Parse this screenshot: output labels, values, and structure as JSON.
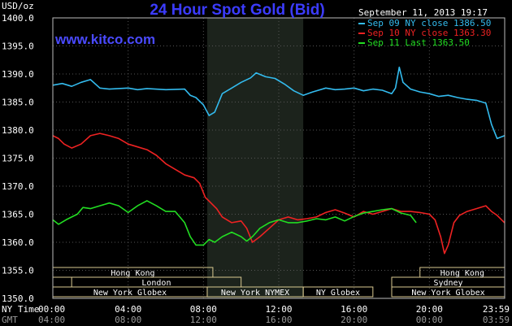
{
  "title": "24 Hour Spot Gold (Bid)",
  "brand": "www.kitco.com",
  "ylabel_unit": "USD/oz",
  "timestamp": "September 11, 2013 19:17",
  "legend": [
    {
      "label": "Sep 09 NY close 1386.50",
      "color": "#33bbee"
    },
    {
      "label": "Sep 10 NY close 1363.30",
      "color": "#ee2222"
    },
    {
      "label": "Sep 11 Last 1363.50",
      "color": "#22dd22"
    }
  ],
  "row_labels": {
    "ny_time": "NY Time",
    "gmt": "GMT"
  },
  "markets": [
    {
      "label": "Hong Kong",
      "start": 0.0,
      "end": 8.5
    },
    {
      "label": "London",
      "start": 1.0,
      "end": 10.0
    },
    {
      "label": "New York Globex",
      "start": 0.0,
      "end": 8.2
    },
    {
      "label": "New York NYMEX",
      "start": 8.2,
      "end": 13.3
    },
    {
      "label": "NY Globex",
      "start": 13.3,
      "end": 17.0
    },
    {
      "label": "Sydney",
      "start": 18.0,
      "end": 24.0
    },
    {
      "label": "Hong Kong",
      "start": 19.5,
      "end": 24.0
    },
    {
      "label": "New York Globex",
      "start": 18.0,
      "end": 24.0
    }
  ],
  "chart_data": {
    "type": "line",
    "title": "24 Hour Spot Gold (Bid)",
    "ylabel": "USD/oz",
    "xlim": [
      0,
      24
    ],
    "ylim": [
      1350,
      1400
    ],
    "yticks": [
      1350,
      1355,
      1360,
      1365,
      1370,
      1375,
      1380,
      1385,
      1390,
      1395,
      1400
    ],
    "xticks": [
      {
        "ny": "00:00",
        "gmt": "04:00"
      },
      {
        "ny": "04:00",
        "gmt": "08:00"
      },
      {
        "ny": "08:00",
        "gmt": "12:00"
      },
      {
        "ny": "12:00",
        "gmt": "16:00"
      },
      {
        "ny": "16:00",
        "gmt": "20:00"
      },
      {
        "ny": "20:00",
        "gmt": "00:00"
      },
      {
        "ny": "23:59",
        "gmt": "03:59"
      }
    ],
    "shaded_region": [
      8.2,
      13.3
    ],
    "grid": true,
    "series": [
      {
        "name": "Sep 09 NY close 1386.50",
        "color": "#33bbee",
        "points": [
          [
            0,
            1388
          ],
          [
            0.5,
            1388.3
          ],
          [
            1,
            1387.8
          ],
          [
            1.5,
            1388.5
          ],
          [
            2,
            1389
          ],
          [
            2.5,
            1387.5
          ],
          [
            3,
            1387.3
          ],
          [
            4,
            1387.5
          ],
          [
            4.5,
            1387.2
          ],
          [
            5,
            1387.4
          ],
          [
            6,
            1387.2
          ],
          [
            7,
            1387.3
          ],
          [
            7.3,
            1386.2
          ],
          [
            7.6,
            1385.8
          ],
          [
            8,
            1384.5
          ],
          [
            8.3,
            1382.6
          ],
          [
            8.6,
            1383.2
          ],
          [
            9,
            1386.5
          ],
          [
            9.5,
            1387.5
          ],
          [
            10,
            1388.5
          ],
          [
            10.5,
            1389.3
          ],
          [
            10.8,
            1390.2
          ],
          [
            11.3,
            1389.5
          ],
          [
            11.8,
            1389.2
          ],
          [
            12.3,
            1388.2
          ],
          [
            12.8,
            1387
          ],
          [
            13.3,
            1386.2
          ],
          [
            13.8,
            1386.8
          ],
          [
            14.5,
            1387.5
          ],
          [
            15,
            1387.2
          ],
          [
            15.5,
            1387.3
          ],
          [
            16,
            1387.5
          ],
          [
            16.5,
            1387
          ],
          [
            17,
            1387.3
          ],
          [
            17.5,
            1387.1
          ],
          [
            18,
            1386.5
          ],
          [
            18.2,
            1387.5
          ],
          [
            18.4,
            1391.2
          ],
          [
            18.6,
            1388.5
          ],
          [
            19,
            1387.3
          ],
          [
            19.5,
            1386.8
          ],
          [
            20,
            1386.5
          ],
          [
            20.5,
            1386
          ],
          [
            21,
            1386.2
          ],
          [
            21.5,
            1385.8
          ],
          [
            22,
            1385.5
          ],
          [
            22.5,
            1385.3
          ],
          [
            23,
            1384.8
          ],
          [
            23.3,
            1381
          ],
          [
            23.6,
            1378.5
          ],
          [
            23.99,
            1379
          ]
        ]
      },
      {
        "name": "Sep 10 NY close 1363.30",
        "color": "#ee2222",
        "points": [
          [
            0,
            1379
          ],
          [
            0.3,
            1378.5
          ],
          [
            0.6,
            1377.5
          ],
          [
            1,
            1376.8
          ],
          [
            1.5,
            1377.5
          ],
          [
            2,
            1379
          ],
          [
            2.5,
            1379.4
          ],
          [
            3,
            1379
          ],
          [
            3.5,
            1378.5
          ],
          [
            4,
            1377.5
          ],
          [
            4.5,
            1377
          ],
          [
            5,
            1376.5
          ],
          [
            5.5,
            1375.5
          ],
          [
            6,
            1374
          ],
          [
            6.5,
            1373
          ],
          [
            7,
            1372
          ],
          [
            7.5,
            1371.5
          ],
          [
            7.8,
            1370.5
          ],
          [
            8.1,
            1368
          ],
          [
            8.4,
            1367
          ],
          [
            8.7,
            1366
          ],
          [
            9,
            1364.5
          ],
          [
            9.5,
            1363.5
          ],
          [
            10,
            1363.8
          ],
          [
            10.3,
            1362.5
          ],
          [
            10.6,
            1360
          ],
          [
            11,
            1361
          ],
          [
            11.5,
            1362.5
          ],
          [
            12,
            1364
          ],
          [
            12.5,
            1364.5
          ],
          [
            13,
            1364
          ],
          [
            13.5,
            1364.2
          ],
          [
            14,
            1364.5
          ],
          [
            14.5,
            1365.3
          ],
          [
            15,
            1365.8
          ],
          [
            15.5,
            1365.2
          ],
          [
            16,
            1364.5
          ],
          [
            16.5,
            1365.5
          ],
          [
            17,
            1365
          ],
          [
            17.5,
            1365.5
          ],
          [
            18,
            1366
          ],
          [
            18.5,
            1365.5
          ],
          [
            19,
            1365.5
          ],
          [
            19.5,
            1365.3
          ],
          [
            20,
            1365
          ],
          [
            20.3,
            1364
          ],
          [
            20.6,
            1361
          ],
          [
            20.8,
            1358
          ],
          [
            21,
            1359.5
          ],
          [
            21.3,
            1363.5
          ],
          [
            21.6,
            1364.8
          ],
          [
            22,
            1365.5
          ],
          [
            22.5,
            1366
          ],
          [
            23,
            1366.5
          ],
          [
            23.3,
            1365.5
          ],
          [
            23.6,
            1364.8
          ],
          [
            23.99,
            1363.5
          ]
        ]
      },
      {
        "name": "Sep 11 Last 1363.50",
        "color": "#22dd22",
        "points": [
          [
            0,
            1364
          ],
          [
            0.3,
            1363.2
          ],
          [
            0.7,
            1364
          ],
          [
            1,
            1364.5
          ],
          [
            1.3,
            1365
          ],
          [
            1.6,
            1366.2
          ],
          [
            2,
            1366
          ],
          [
            2.5,
            1366.5
          ],
          [
            3,
            1367
          ],
          [
            3.5,
            1366.5
          ],
          [
            4,
            1365.3
          ],
          [
            4.5,
            1366.5
          ],
          [
            5,
            1367.4
          ],
          [
            5.5,
            1366.5
          ],
          [
            6,
            1365.5
          ],
          [
            6.5,
            1365.5
          ],
          [
            7,
            1363.5
          ],
          [
            7.3,
            1361
          ],
          [
            7.6,
            1359.5
          ],
          [
            8,
            1359.5
          ],
          [
            8.3,
            1360.5
          ],
          [
            8.6,
            1360
          ],
          [
            9,
            1361
          ],
          [
            9.5,
            1361.8
          ],
          [
            10,
            1361
          ],
          [
            10.3,
            1360.2
          ],
          [
            10.6,
            1361
          ],
          [
            11,
            1362.5
          ],
          [
            11.5,
            1363.5
          ],
          [
            12,
            1364
          ],
          [
            12.5,
            1363.5
          ],
          [
            13,
            1363.5
          ],
          [
            13.5,
            1363.8
          ],
          [
            14,
            1364.2
          ],
          [
            14.5,
            1364
          ],
          [
            15,
            1364.5
          ],
          [
            15.5,
            1363.8
          ],
          [
            16,
            1364.6
          ],
          [
            16.5,
            1365.2
          ],
          [
            17,
            1365.5
          ],
          [
            17.5,
            1365.8
          ],
          [
            18,
            1366
          ],
          [
            18.5,
            1365.2
          ],
          [
            19,
            1364.8
          ],
          [
            19.3,
            1363.5
          ]
        ]
      }
    ]
  }
}
